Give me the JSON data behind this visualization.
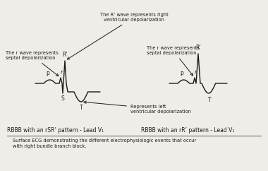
{
  "bg_color": "#f0ede8",
  "line_color": "#1a1a1a",
  "text_color": "#1a1a1a",
  "title_top": "The R’ wave represents right\nventricular depolarization",
  "label_r_left": "The r wave represents\nseptal depolarization",
  "label_r_right": "The r wave represents\nseptal depolarization",
  "label_t": "Represents left\nventricular depolarization",
  "caption1": "RBBB with an rSR’ pattern - Lead V₁",
  "caption2": "RBBB with an rR’ pattern - Lead V₁",
  "footer": "Surface ECG demonstrating the different electrophysiologic events that occur\nwith right bundle branch block."
}
